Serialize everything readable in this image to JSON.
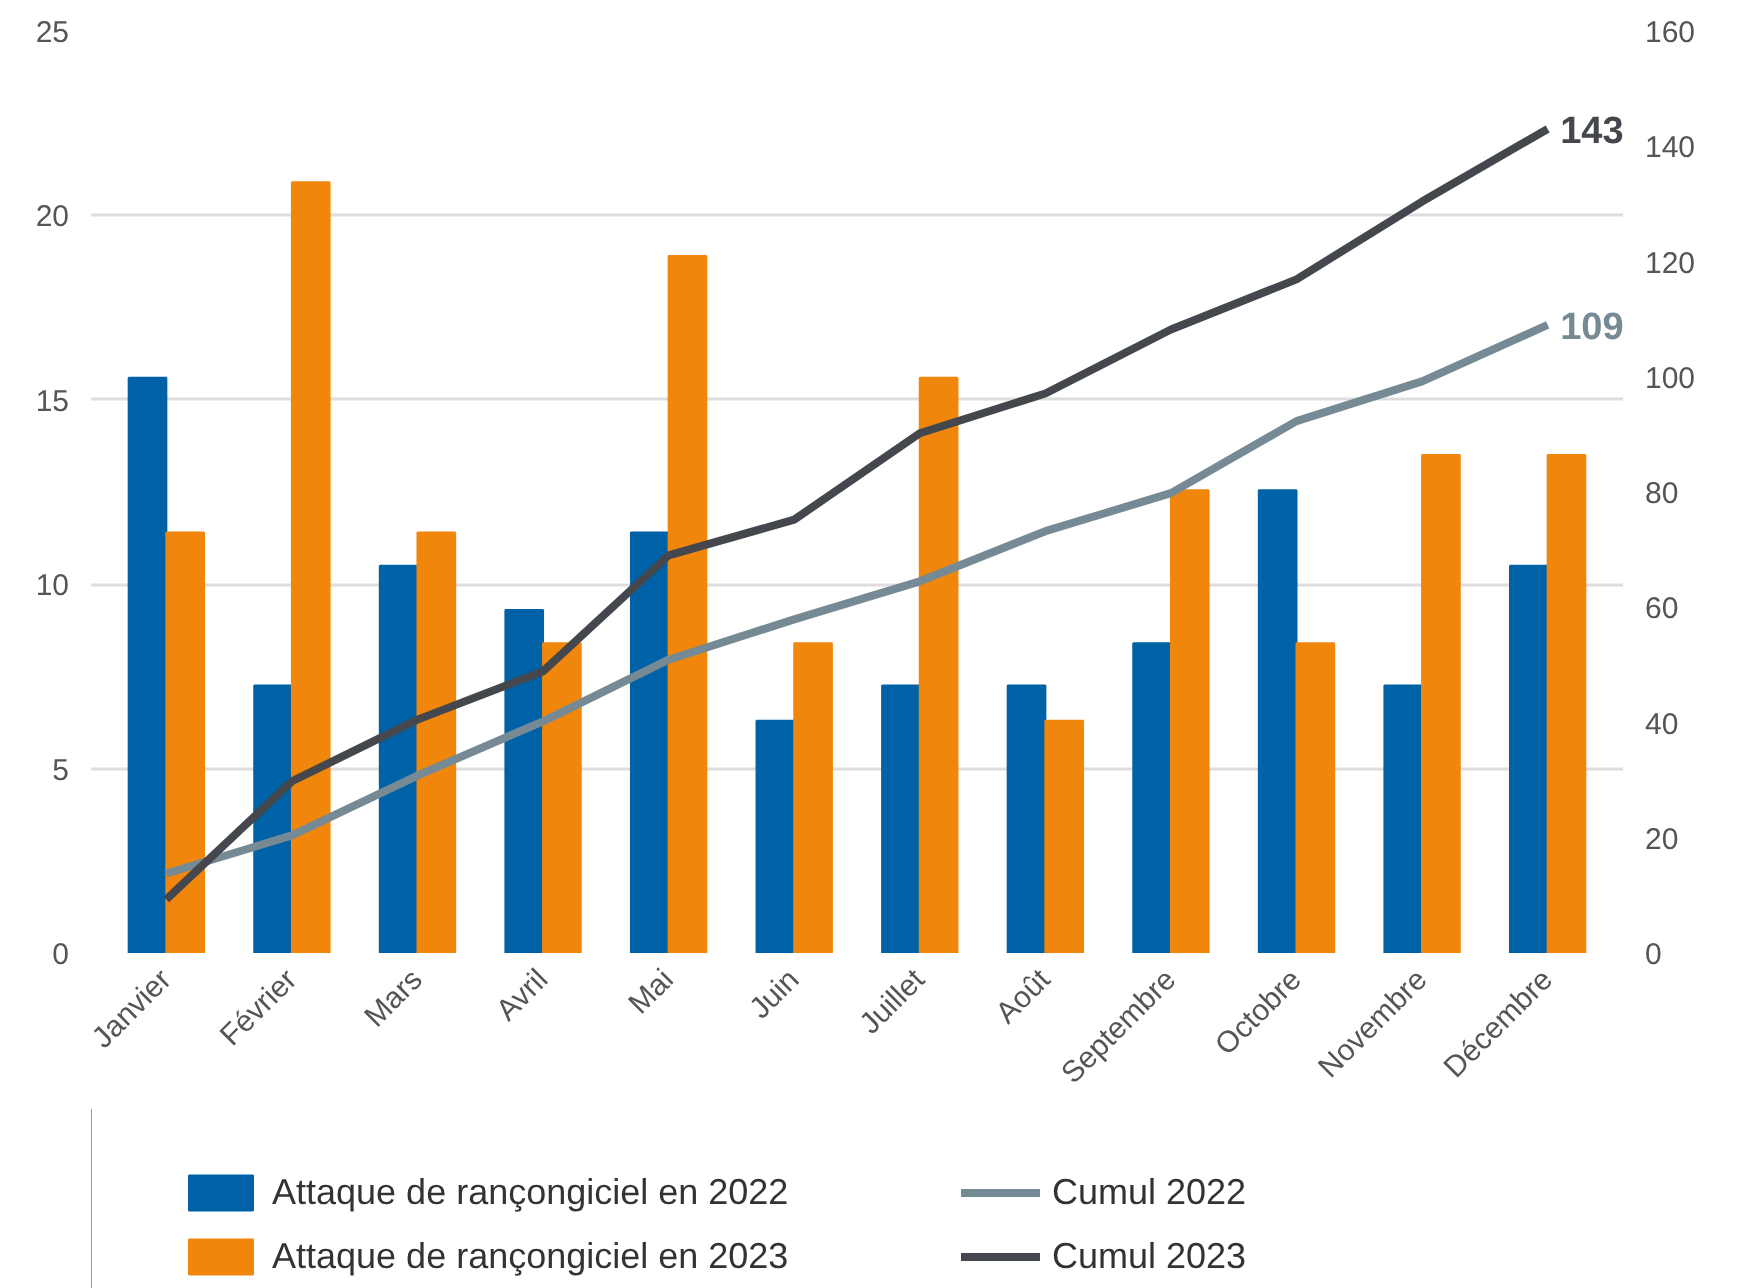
{
  "chart_data": {
    "type": "bar",
    "categories": [
      "Janvier",
      "Février",
      "Mars",
      "Avril",
      "Mai",
      "Juin",
      "Juillet",
      "Août",
      "Septembre",
      "Octobre",
      "Novembre",
      "Décembre"
    ],
    "series": [
      {
        "name": "Attaque de rançongiciel en 2022",
        "color": "#0062a6",
        "values": [
          15.6,
          7.25,
          10.5,
          9.3,
          11.4,
          6.3,
          7.25,
          7.25,
          8.4,
          12.55,
          7.25,
          10.5
        ]
      },
      {
        "name": "Attaque de rançongiciel en 2023",
        "color": "#f0870c",
        "values": [
          11.4,
          20.9,
          11.4,
          8.4,
          18.9,
          8.4,
          15.6,
          6.3,
          12.55,
          8.4,
          13.5,
          13.5
        ]
      },
      {
        "name": "Cumul 2022",
        "type": "line",
        "axis": "y2",
        "color": "#768a95",
        "values": [
          13.8,
          20.4,
          30.8,
          40.2,
          50.9,
          57.9,
          64.5,
          73.2,
          79.8,
          92.3,
          99.2,
          109
        ],
        "value_labels": [
          null,
          null,
          null,
          null,
          null,
          null,
          null,
          null,
          null,
          null,
          null,
          "109"
        ]
      },
      {
        "name": "Cumul 2023",
        "type": "line",
        "axis": "y2",
        "color": "#44474d",
        "values": [
          9.3,
          29.8,
          40.5,
          48.9,
          69,
          75.2,
          90.2,
          97.1,
          108.2,
          116.9,
          130.4,
          143
        ],
        "value_labels": [
          null,
          null,
          null,
          null,
          null,
          null,
          null,
          null,
          null,
          null,
          null,
          "143"
        ]
      }
    ],
    "ylim": [
      0,
      25
    ],
    "yticks": [
      0,
      5,
      10,
      15,
      20,
      25
    ],
    "y2lim": [
      0,
      160
    ],
    "y2ticks": [
      0,
      20,
      40,
      60,
      80,
      100,
      120,
      140,
      160
    ],
    "grid": "y",
    "legend": "bottom",
    "line_style": "solid"
  }
}
